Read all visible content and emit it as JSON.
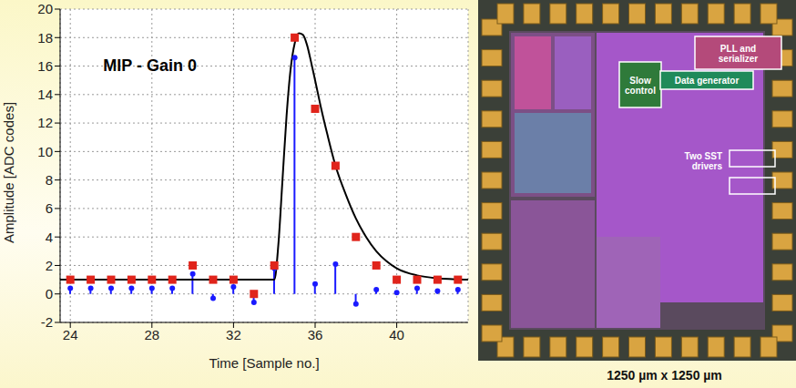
{
  "chart_data": {
    "type": "line",
    "annotation": "MIP - Gain 0",
    "x_label": "Time [Sample no.]",
    "y_label": "Amplitude [ADC codes]",
    "xlim": [
      23.5,
      43.5
    ],
    "xticks": [
      24,
      28,
      32,
      36,
      40
    ],
    "ylim": [
      -2,
      20
    ],
    "yticks": [
      -2,
      0,
      2,
      4,
      6,
      8,
      10,
      12,
      14,
      16,
      18,
      20
    ],
    "grid": true,
    "series": [
      {
        "type": "line",
        "color": "#000000",
        "x": [
          23.5,
          34,
          34.2,
          34.4,
          34.6,
          34.8,
          35,
          35.2,
          35.4,
          35.6,
          35.8,
          36,
          36.3,
          36.6,
          37,
          37.5,
          38,
          38.5,
          39,
          39.5,
          40,
          41,
          42,
          43.5
        ],
        "values": [
          1,
          1,
          3.5,
          8,
          12.5,
          15.8,
          17.6,
          18.3,
          18.2,
          17.5,
          16.3,
          15,
          13,
          11.2,
          9,
          7,
          5.3,
          4,
          3,
          2.3,
          1.8,
          1.3,
          1.1,
          1
        ]
      },
      {
        "type": "stem",
        "color": "#1a1aff",
        "marker": "circle",
        "x": [
          24,
          25,
          26,
          27,
          28,
          29,
          30,
          31,
          32,
          33,
          34,
          35,
          36,
          37,
          38,
          39,
          40,
          41,
          42,
          43
        ],
        "values": [
          0.4,
          0.4,
          0.4,
          0.4,
          0.4,
          0.4,
          1.4,
          -0.3,
          0.5,
          -0.6,
          1.8,
          16.6,
          0.7,
          2.1,
          -0.7,
          0.3,
          0.1,
          0.4,
          0.2,
          0.3
        ]
      },
      {
        "type": "scatter",
        "color": "#e0241b",
        "marker": "square",
        "x": [
          24,
          25,
          26,
          27,
          28,
          29,
          30,
          31,
          32,
          33,
          34,
          35,
          36,
          37,
          38,
          39,
          40,
          41,
          42,
          43
        ],
        "values": [
          1,
          1,
          1,
          1,
          1,
          1,
          2,
          1,
          1,
          0,
          2,
          18,
          13,
          9,
          4,
          2,
          1,
          1,
          1,
          1
        ]
      }
    ]
  },
  "layout_image": {
    "labels": [
      "PLL and serializer",
      "Slow control",
      "Data generator",
      "Two SST drivers"
    ],
    "caption": "1250 µm x 1250 µm"
  }
}
